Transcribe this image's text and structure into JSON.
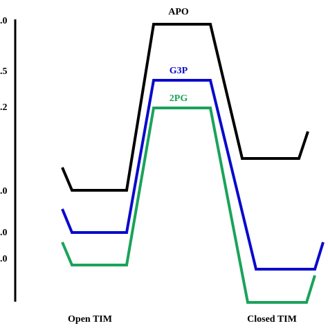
{
  "axis": {
    "labels": [
      ".0",
      ".5",
      ".2",
      ".0",
      ".0",
      ".0"
    ]
  },
  "profiles": [
    {
      "name": "APO"
    },
    {
      "name": "G3P"
    },
    {
      "name": "2PG"
    }
  ],
  "states": [
    "Open TIM",
    "Closed TIM"
  ]
}
